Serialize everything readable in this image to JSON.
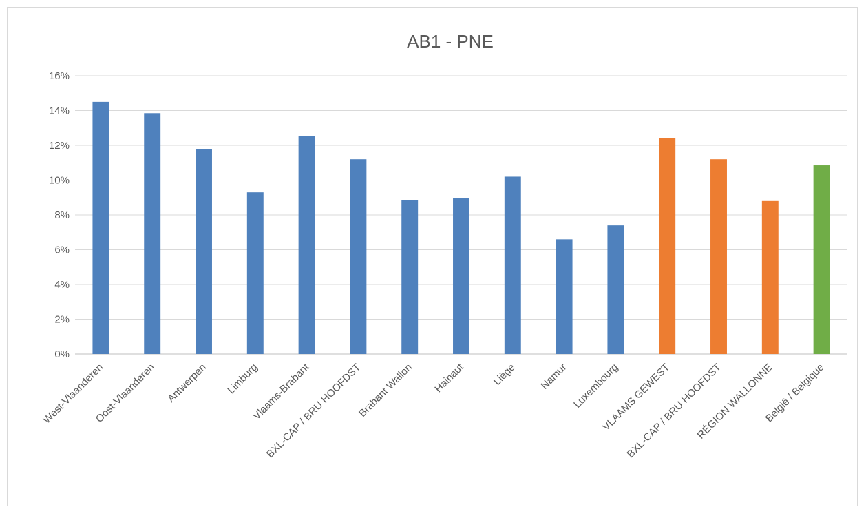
{
  "chart_data": {
    "type": "bar",
    "title": "AB1 - PNE",
    "xlabel": "",
    "ylabel": "",
    "ylim": [
      0,
      16
    ],
    "y_tick_step": 2,
    "y_tick_format": "percent",
    "grid": true,
    "legend": "none",
    "categories": [
      "West-Vlaanderen",
      "Oost-Vlaanderen",
      "Antwerpen",
      "Limburg",
      "Vlaams-Brabant",
      "BXL-CAP / BRU HOOFDST",
      "Brabant Wallon",
      "Hainaut",
      "Liège",
      "Namur",
      "Luxembourg",
      "VLAAMS GEWEST",
      "BXL-CAP / BRU HOOFDST",
      "RÉGION WALLONNE",
      "België / Belgique"
    ],
    "values": [
      14.5,
      13.85,
      11.8,
      9.3,
      12.55,
      11.2,
      8.85,
      8.95,
      10.2,
      6.6,
      7.4,
      12.4,
      11.2,
      8.8,
      10.85
    ],
    "bar_colors": [
      "#4f81bd",
      "#4f81bd",
      "#4f81bd",
      "#4f81bd",
      "#4f81bd",
      "#4f81bd",
      "#4f81bd",
      "#4f81bd",
      "#4f81bd",
      "#4f81bd",
      "#4f81bd",
      "#ed7d31",
      "#ed7d31",
      "#ed7d31",
      "#70ad47"
    ]
  }
}
